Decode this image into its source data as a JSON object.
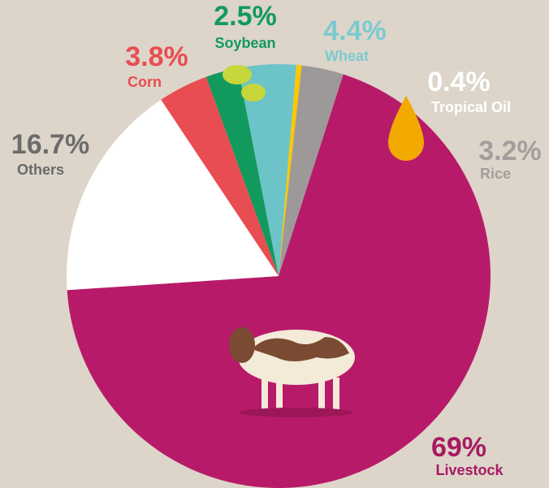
{
  "chart_data": {
    "type": "pie",
    "categories": [
      "Soybean",
      "Wheat",
      "Tropical Oil",
      "Rice",
      "Livestock",
      "Others",
      "Corn"
    ],
    "values": [
      2.5,
      4.4,
      0.4,
      3.2,
      69,
      16.7,
      3.8
    ],
    "value_labels": [
      "2.5%",
      "4.4%",
      "0.4%",
      "3.2%",
      "69%",
      "16.7%",
      "3.8%"
    ],
    "colors": [
      "#129a5e",
      "#6cc4c8",
      "#fdc800",
      "#9e9999",
      "#b81a6a",
      "#ffffff",
      "#e84d52"
    ]
  }
}
